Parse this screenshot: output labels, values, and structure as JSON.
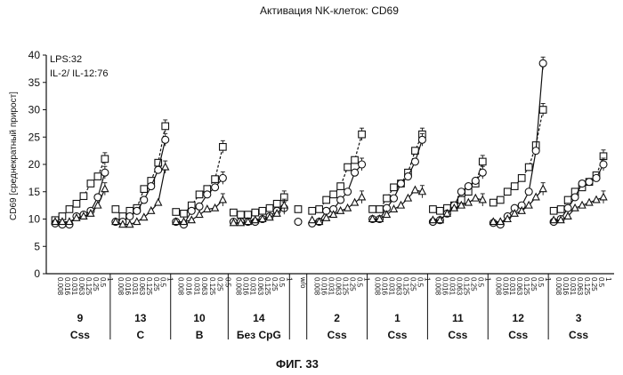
{
  "chart_data": {
    "type": "line",
    "title": "Активация NK-клеток:  CD69",
    "ylabel": "CD69  [среднекратный прирост]",
    "ylim": [
      0,
      40
    ],
    "yticks": [
      "0",
      "5",
      "10",
      "15",
      "20",
      "25",
      "30",
      "35",
      "40"
    ],
    "annotations": [
      "LPS:32",
      "IL-2/ IL-12:76"
    ],
    "figure_caption": "ФИГ. 33",
    "concentrations": [
      "0.008",
      "0.016",
      "0.031",
      "0.063",
      "0.125",
      "0.25",
      "0.5",
      "1"
    ],
    "wo_label": "w/o",
    "wo_values": [
      11.8,
      9.5
    ],
    "groups": [
      {
        "number": "9",
        "sub": "Css",
        "n": 8,
        "square": [
          9.8,
          10.5,
          11.8,
          12.8,
          14.2,
          16.5,
          17.8,
          21.0
        ],
        "circle": [
          9.2,
          9.0,
          9.0,
          10.5,
          10.8,
          11.5,
          14.0,
          18.5
        ],
        "triangle": [
          9.5,
          9.5,
          9.5,
          10.2,
          10.5,
          11.0,
          12.5,
          15.5
        ]
      },
      {
        "number": "13",
        "sub": "C",
        "n": 8,
        "square": [
          11.8,
          10.5,
          11.5,
          12.0,
          15.5,
          17.0,
          20.3,
          27.0
        ],
        "circle": [
          9.5,
          9.5,
          10.5,
          11.5,
          13.5,
          16.0,
          19.0,
          24.5
        ],
        "triangle": [
          9.5,
          9.0,
          9.0,
          9.5,
          10.3,
          11.5,
          13.0,
          19.5
        ]
      },
      {
        "number": "10",
        "sub": "B",
        "n": 7,
        "square": [
          11.3,
          11.0,
          12.5,
          14.5,
          15.5,
          17.3,
          23.2
        ],
        "circle": [
          9.5,
          9.0,
          11.5,
          12.3,
          14.5,
          15.8,
          17.5
        ],
        "triangle": [
          9.5,
          9.5,
          9.8,
          10.8,
          11.8,
          12.0,
          13.5
        ]
      },
      {
        "number": "14",
        "sub": "Без  CpG",
        "n": 8,
        "square": [
          11.2,
          10.8,
          10.8,
          11.2,
          11.5,
          12.0,
          12.8,
          14.0
        ],
        "circle": [
          9.5,
          9.5,
          9.5,
          9.5,
          10.0,
          10.5,
          11.5,
          12.0
        ],
        "triangle": [
          9.3,
          9.3,
          9.5,
          9.8,
          10.0,
          10.3,
          11.0,
          12.5
        ]
      },
      {
        "number": "2",
        "sub": "Css",
        "n": 8,
        "square": [
          11.5,
          11.8,
          13.5,
          14.5,
          16.0,
          19.5,
          20.8,
          25.5
        ],
        "circle": [
          9.2,
          9.5,
          11.5,
          11.8,
          13.5,
          15.0,
          18.5,
          20.0
        ],
        "triangle": [
          9.8,
          9.5,
          10.2,
          10.8,
          11.5,
          12.0,
          13.0,
          14.0
        ]
      },
      {
        "number": "1",
        "sub": "Css",
        "n": 8,
        "square": [
          11.8,
          11.8,
          13.8,
          15.8,
          16.5,
          18.5,
          22.5,
          25.5
        ],
        "circle": [
          10.0,
          10.0,
          12.0,
          13.8,
          16.5,
          17.8,
          20.5,
          24.5
        ],
        "triangle": [
          10.0,
          10.0,
          10.8,
          11.8,
          12.5,
          13.8,
          15.3,
          15.0
        ]
      },
      {
        "number": "11",
        "sub": "Css",
        "n": 8,
        "square": [
          11.8,
          11.5,
          12.0,
          12.5,
          13.5,
          15.0,
          16.5,
          20.5
        ],
        "circle": [
          9.5,
          9.8,
          11.0,
          12.5,
          15.0,
          16.0,
          17.0,
          18.5
        ],
        "triangle": [
          9.8,
          9.8,
          11.0,
          12.0,
          12.5,
          13.0,
          13.8,
          13.5
        ]
      },
      {
        "number": "12",
        "sub": "Css",
        "n": 8,
        "square": [
          13.0,
          13.5,
          15.0,
          16.0,
          17.5,
          19.5,
          23.5,
          30.0
        ],
        "circle": [
          9.3,
          9.0,
          10.5,
          12.0,
          12.5,
          15.0,
          22.5,
          38.5
        ],
        "triangle": [
          9.5,
          9.5,
          10.0,
          11.0,
          11.5,
          12.5,
          14.0,
          15.5
        ]
      },
      {
        "number": "3",
        "sub": "Css",
        "n": 8,
        "square": [
          11.5,
          11.8,
          13.5,
          15.0,
          15.8,
          16.8,
          18.0,
          21.5
        ],
        "circle": [
          9.5,
          10.0,
          12.0,
          14.0,
          16.5,
          16.8,
          17.5,
          20.0
        ],
        "triangle": [
          9.8,
          9.8,
          10.5,
          12.0,
          12.5,
          13.0,
          13.5,
          14.0
        ]
      }
    ]
  }
}
